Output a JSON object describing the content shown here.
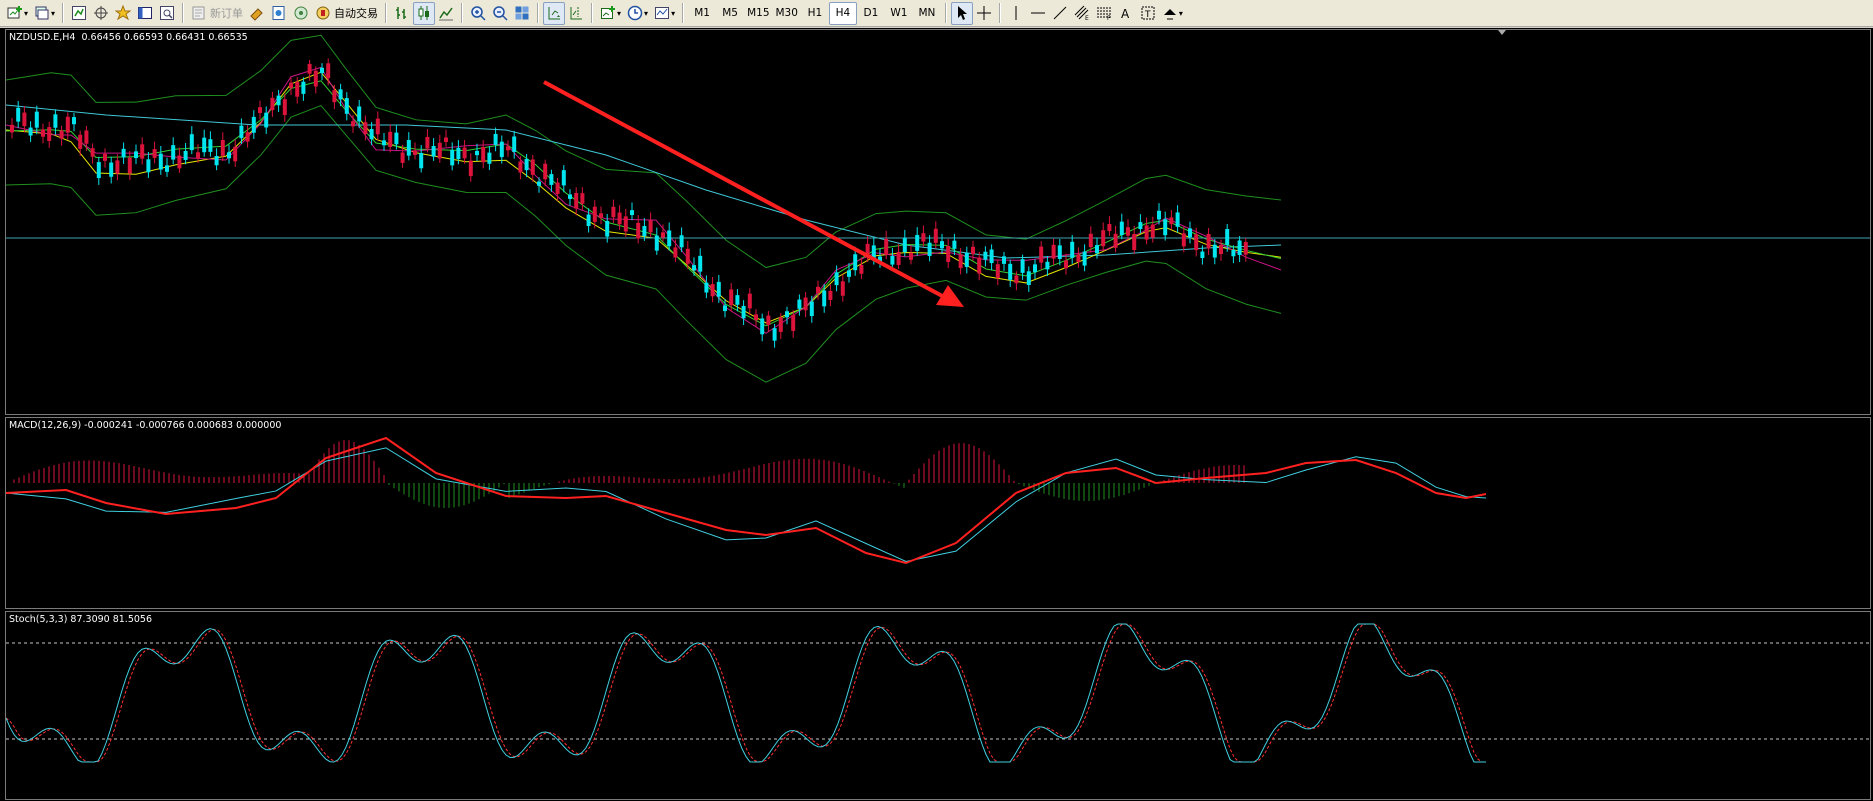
{
  "toolbar": {
    "new_order_label": "新订单",
    "autotrade_label": "自动交易",
    "timeframes": [
      "M1",
      "M5",
      "M15",
      "M30",
      "H1",
      "H4",
      "D1",
      "W1",
      "MN"
    ],
    "active_timeframe": "H4"
  },
  "panels": {
    "main_label": "NZDUSD.E,H4  0.66456 0.66593 0.66431 0.66535",
    "macd_label": "MACD(12,26,9) -0.000241 -0.000766 0.000683 0.000000",
    "stoch_label": "Stoch(5,3,3) 87.3090 81.5056"
  },
  "colors": {
    "bull_candle": "#dc143c",
    "bear_candle": "#00e5ee",
    "bollinger": "#1f8f1f",
    "ma_fast": "#c71585",
    "ma_mid": "#32cd32",
    "ma_slow": "#e6e600",
    "ma_long": "#40c8d8",
    "arrow": "#ff2020",
    "macd_signal": "#ff2020",
    "macd_main": "#40d0e0",
    "hist_pos": "#dc143c",
    "hist_neg": "#1f8f1f"
  },
  "icons": [
    "new-chart-icon",
    "profiles-icon",
    "market-watch-icon",
    "navigator-icon",
    "terminal-icon",
    "strategy-tester-icon",
    "new-order-icon",
    "metaeditor-icon",
    "history-icon",
    "autotrade-icon",
    "bar-chart-icon",
    "candles-icon",
    "line-chart-icon",
    "zoom-in-icon",
    "zoom-out-icon",
    "tile-icon",
    "autoscroll-icon",
    "shift-icon",
    "indicators-icon",
    "periods-icon",
    "templates-icon",
    "cursor-icon",
    "crosshair-icon",
    "vertical-line-icon",
    "horizontal-line-icon",
    "trendline-icon",
    "channel-icon",
    "fibonacci-icon",
    "text-icon",
    "label-icon",
    "arrows-icon"
  ]
}
